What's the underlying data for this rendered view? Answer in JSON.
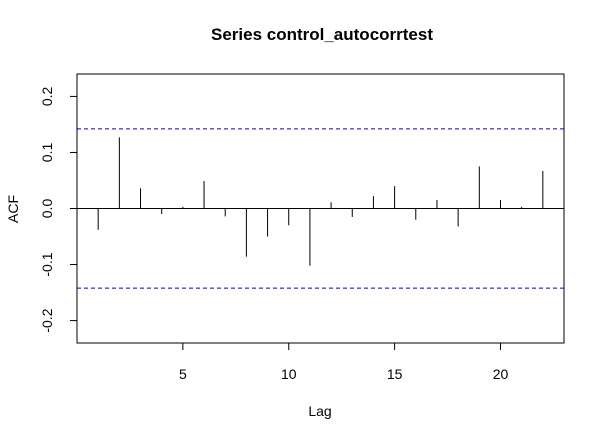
{
  "chart_data": {
    "type": "bar",
    "subtype": "acf-spikes",
    "title": "Series  control_autocorrtest",
    "xlabel": "Lag",
    "ylabel": "ACF",
    "xlim": [
      0,
      23
    ],
    "ylim": [
      -0.24,
      0.24
    ],
    "x_ticks": [
      5,
      10,
      15,
      20
    ],
    "y_ticks": [
      -0.2,
      -0.1,
      0.0,
      0.1,
      0.2
    ],
    "y_tick_labels": [
      "-0.2",
      "-0.1",
      "0.0",
      "0.1",
      "0.2"
    ],
    "grid": false,
    "confidence_bound": 0.142,
    "confidence_color": "#0000cc",
    "lags": [
      1,
      2,
      3,
      4,
      5,
      6,
      7,
      8,
      9,
      10,
      11,
      12,
      13,
      14,
      15,
      16,
      17,
      18,
      19,
      20,
      21,
      22
    ],
    "values": [
      -0.038,
      0.127,
      0.036,
      -0.01,
      0.003,
      0.049,
      -0.014,
      -0.086,
      -0.05,
      -0.03,
      -0.102,
      0.011,
      -0.015,
      0.022,
      0.04,
      -0.02,
      0.015,
      -0.032,
      0.075,
      0.015,
      0.003,
      0.067
    ]
  }
}
